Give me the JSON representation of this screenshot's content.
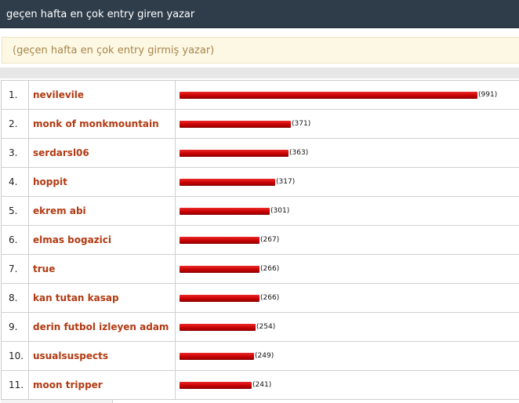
{
  "header": {
    "title": "geçen hafta en çok entry giren yazar"
  },
  "subheader": {
    "text": "(geçen hafta en çok entry girmiş yazar)"
  },
  "colors": {
    "bar": "#cc0000",
    "name_link": "#b23a12",
    "titlebar": "#2f3d4b"
  },
  "ranking": {
    "rows": [
      {
        "rank": "1.",
        "name": "nevilevile",
        "count": "(991)",
        "value": 991
      },
      {
        "rank": "2.",
        "name": "monk of monkmountain",
        "count": "(371)",
        "value": 371
      },
      {
        "rank": "3.",
        "name": "serdarsl06",
        "count": "(363)",
        "value": 363
      },
      {
        "rank": "4.",
        "name": "hoppit",
        "count": "(317)",
        "value": 317
      },
      {
        "rank": "5.",
        "name": "ekrem abi",
        "count": "(301)",
        "value": 301
      },
      {
        "rank": "6.",
        "name": "elmas bogazici",
        "count": "(267)",
        "value": 267
      },
      {
        "rank": "7.",
        "name": "true",
        "count": "(266)",
        "value": 266
      },
      {
        "rank": "8.",
        "name": "kan tutan kasap",
        "count": "(266)",
        "value": 266
      },
      {
        "rank": "9.",
        "name": "derin futbol izleyen adam",
        "count": "(254)",
        "value": 254
      },
      {
        "rank": "10.",
        "name": "usualsuspects",
        "count": "(249)",
        "value": 249
      },
      {
        "rank": "11.",
        "name": "moon tripper",
        "count": "(241)",
        "value": 241
      }
    ]
  }
}
